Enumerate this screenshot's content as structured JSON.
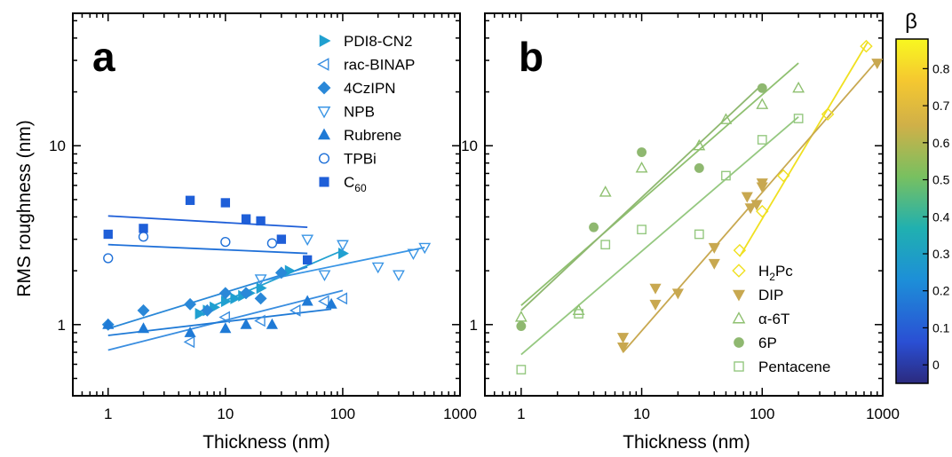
{
  "figure": {
    "ylabel": "RMS roughness (nm)",
    "colorbar_label": "β",
    "colorbar_ticks": [
      "0",
      "0.1",
      "0.2",
      "0.3",
      "0.4",
      "0.5",
      "0.6",
      "0.7",
      "0.8"
    ],
    "colorbar_range": [
      -0.05,
      0.88
    ]
  },
  "chart_data": [
    {
      "panel_label": "a",
      "type": "scatter",
      "xlabel": "Thickness (nm)",
      "ylabel": "RMS roughness (nm)",
      "x_scale": "log",
      "y_scale": "log",
      "xlim": [
        0.5,
        1000
      ],
      "ylim": [
        0.4,
        55
      ],
      "x_ticks": [
        "1",
        "10",
        "100",
        "1000"
      ],
      "y_ticks": [
        "1",
        "10"
      ],
      "legend_position": "top-right",
      "series": [
        {
          "name": "PDI8-CN2",
          "marker": "triangle-right",
          "filled": true,
          "color": "#20a0d0",
          "x": [
            6,
            7,
            8,
            10,
            12,
            14,
            16,
            20,
            35,
            100
          ],
          "y": [
            1.15,
            1.2,
            1.25,
            1.35,
            1.4,
            1.45,
            1.5,
            1.6,
            2.0,
            2.5
          ],
          "fit": [
            [
              6,
              1.18
            ],
            [
              100,
              2.6
            ]
          ]
        },
        {
          "name": "rac-BINAP",
          "marker": "triangle-left",
          "filled": false,
          "color": "#3a8ee0",
          "x": [
            5,
            10,
            20,
            40,
            70,
            100
          ],
          "y": [
            0.8,
            1.1,
            1.05,
            1.2,
            1.35,
            1.4
          ],
          "fit": [
            [
              1,
              0.72
            ],
            [
              100,
              1.55
            ]
          ]
        },
        {
          "name": "4CzIPN",
          "marker": "diamond",
          "filled": true,
          "color": "#2a88d8",
          "x": [
            1,
            2,
            5,
            7,
            10,
            15,
            20,
            30
          ],
          "y": [
            1.0,
            1.2,
            1.3,
            1.2,
            1.5,
            1.5,
            1.4,
            1.95
          ],
          "fit": [
            [
              1,
              0.95
            ],
            [
              50,
              2.1
            ]
          ]
        },
        {
          "name": "NPB",
          "marker": "triangle-down",
          "filled": false,
          "color": "#3a95e5",
          "x": [
            20,
            50,
            70,
            100,
            200,
            300,
            400,
            500
          ],
          "y": [
            1.8,
            3.0,
            1.9,
            2.8,
            2.1,
            1.9,
            2.5,
            2.7
          ],
          "fit": [
            [
              20,
              1.75
            ],
            [
              500,
              2.7
            ]
          ]
        },
        {
          "name": "Rubrene",
          "marker": "triangle-up",
          "filled": true,
          "color": "#1f7ad6",
          "x": [
            1,
            2,
            5,
            10,
            15,
            25,
            50,
            80
          ],
          "y": [
            1.0,
            0.95,
            0.9,
            0.95,
            1.0,
            1.0,
            1.35,
            1.3
          ],
          "fit": [
            [
              1,
              0.87
            ],
            [
              80,
              1.22
            ]
          ]
        },
        {
          "name": "TPBi",
          "marker": "circle",
          "filled": false,
          "color": "#1f70d8",
          "x": [
            1,
            2,
            10,
            25
          ],
          "y": [
            2.35,
            3.1,
            2.9,
            2.85
          ],
          "fit": [
            [
              1,
              2.8
            ],
            [
              50,
              2.5
            ]
          ]
        },
        {
          "name": "C60",
          "marker": "square",
          "filled": true,
          "color": "#1f5fd8",
          "x": [
            1,
            2,
            5,
            10,
            15,
            20,
            30,
            50
          ],
          "y": [
            3.2,
            3.45,
            4.95,
            4.8,
            3.9,
            3.8,
            3.0,
            2.3
          ],
          "fit": [
            [
              1,
              4.05
            ],
            [
              50,
              3.5
            ]
          ]
        }
      ]
    },
    {
      "panel_label": "b",
      "type": "scatter",
      "xlabel": "Thickness (nm)",
      "ylabel": "",
      "x_scale": "log",
      "y_scale": "log",
      "xlim": [
        0.5,
        1000
      ],
      "ylim": [
        0.4,
        55
      ],
      "x_ticks": [
        "1",
        "10",
        "100",
        "1000"
      ],
      "y_ticks": [
        "1",
        "10"
      ],
      "legend_position": "bottom-right",
      "series": [
        {
          "name": "H2Pc",
          "marker": "diamond",
          "filled": false,
          "color": "#f0e020",
          "x": [
            65,
            100,
            150,
            350,
            730
          ],
          "y": [
            2.6,
            4.3,
            6.8,
            15.0,
            36.0
          ],
          "fit": [
            [
              65,
              2.4
            ],
            [
              750,
              38
            ]
          ]
        },
        {
          "name": "DIP",
          "marker": "triangle-down",
          "filled": true,
          "color": "#c8a850",
          "x": [
            7,
            7,
            13,
            13,
            20,
            40,
            40,
            75,
            80,
            90,
            100,
            100,
            900
          ],
          "y": [
            0.85,
            0.75,
            1.6,
            1.3,
            1.5,
            2.7,
            2.2,
            5.2,
            4.5,
            4.7,
            6.2,
            5.9,
            29.0
          ],
          "fit": [
            [
              7,
              0.7
            ],
            [
              900,
              30
            ]
          ]
        },
        {
          "name": "α-6T",
          "marker": "triangle-up",
          "filled": false,
          "color": "#8fc070",
          "x": [
            1,
            3,
            5,
            10,
            30,
            50,
            100,
            200
          ],
          "y": [
            1.1,
            1.2,
            5.5,
            7.5,
            10.0,
            14.0,
            17.0,
            21.0
          ],
          "fit": [
            [
              1,
              1.28
            ],
            [
              200,
              29
            ]
          ]
        },
        {
          "name": "6P",
          "marker": "circle",
          "filled": true,
          "color": "#8fb870",
          "x": [
            1,
            4,
            10,
            30,
            100
          ],
          "y": [
            0.98,
            3.5,
            9.2,
            7.5,
            21.0
          ],
          "fit": [
            [
              1,
              1.2
            ],
            [
              100,
              22
            ]
          ]
        },
        {
          "name": "Pentacene",
          "marker": "square",
          "filled": false,
          "color": "#95c880",
          "x": [
            1,
            3,
            5,
            10,
            30,
            50,
            100,
            200
          ],
          "y": [
            0.56,
            1.15,
            2.8,
            3.4,
            3.2,
            6.8,
            10.8,
            14.2
          ],
          "fit": [
            [
              1,
              0.68
            ],
            [
              200,
              14.5
            ]
          ]
        }
      ]
    }
  ]
}
